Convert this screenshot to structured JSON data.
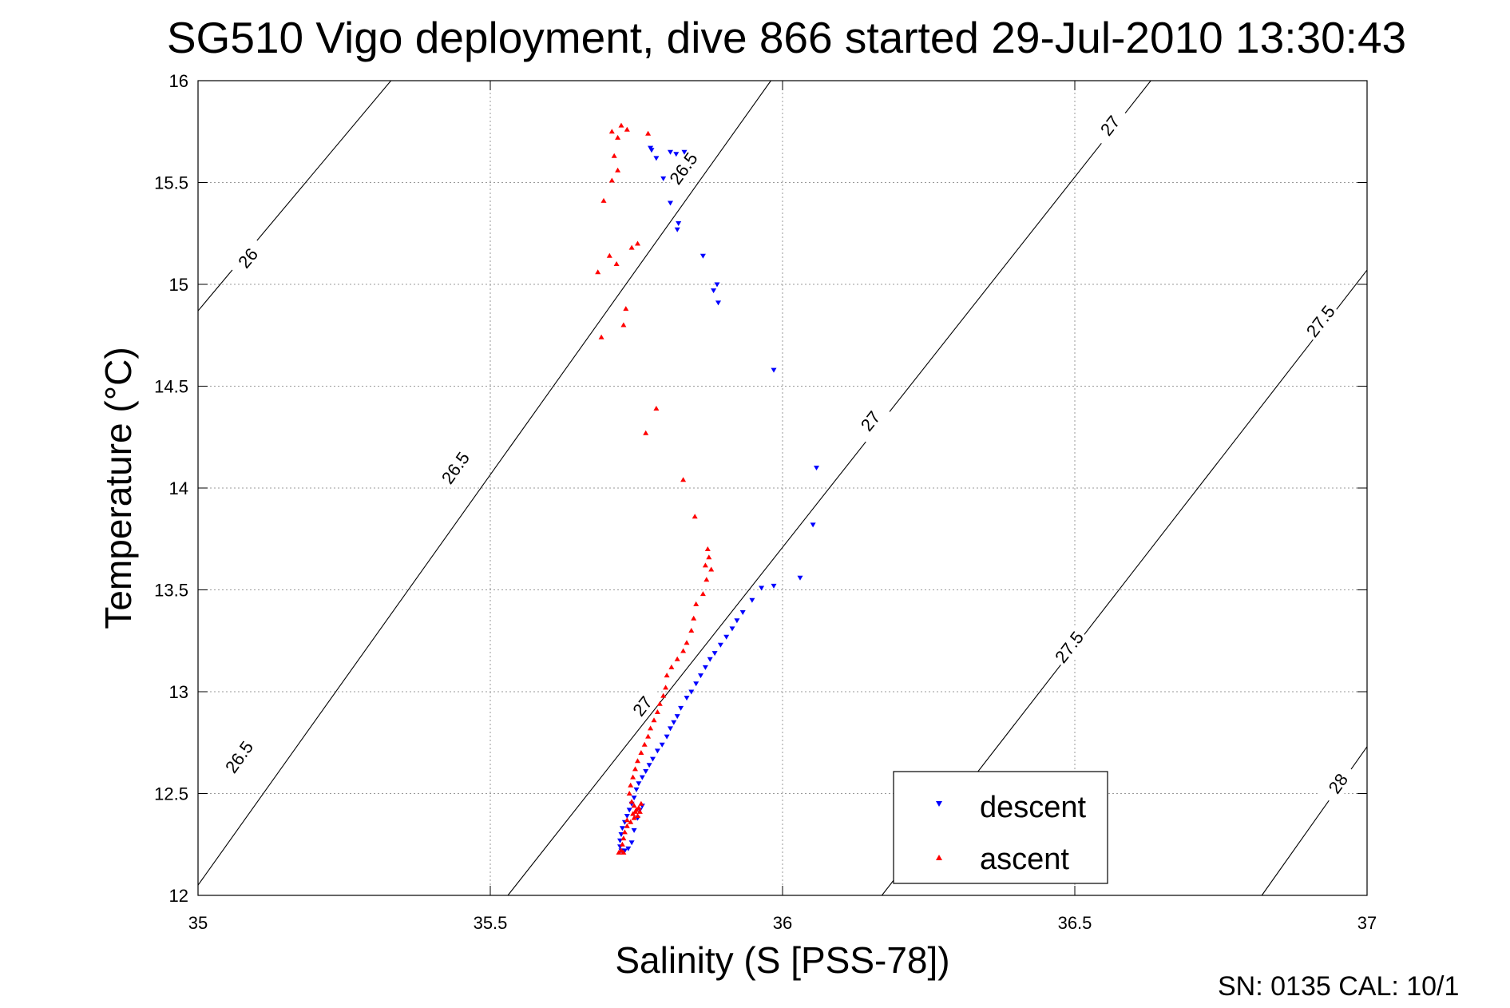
{
  "chart_data": {
    "type": "scatter",
    "title": "SG510 Vigo deployment, dive 866 started 29-Jul-2010 13:30:43",
    "xlabel": "Salinity (S [PSS-78])",
    "ylabel": "Temperature (°C)",
    "xlim": [
      35,
      37
    ],
    "ylim": [
      12,
      16
    ],
    "xticks": [
      "35",
      "35.5",
      "36",
      "36.5",
      "37"
    ],
    "yticks": [
      "12",
      "12.5",
      "13",
      "13.5",
      "14",
      "14.5",
      "15",
      "15.5",
      "16"
    ],
    "grid": true,
    "legend_position": "bottom-right",
    "footer": "SN: 0135  CAL: 10/1",
    "contours": [
      {
        "level": "26",
        "points": [
          [
            35.0,
            14.87
          ],
          [
            35.33,
            16.0
          ]
        ],
        "labels": [
          {
            "text": "26",
            "x": 35.085,
            "y": 15.13
          }
        ]
      },
      {
        "level": "26.5",
        "points": [
          [
            35.0,
            12.05
          ],
          [
            35.98,
            16.0
          ]
        ],
        "labels": [
          {
            "text": "26.5",
            "x": 35.44,
            "y": 14.1
          },
          {
            "text": "26.5",
            "x": 35.83,
            "y": 15.57
          },
          {
            "text": "26.5",
            "x": 35.07,
            "y": 12.68
          }
        ]
      },
      {
        "level": "27",
        "points": [
          [
            35.53,
            12.0
          ],
          [
            36.63,
            16.0
          ]
        ],
        "labels": [
          {
            "text": "27",
            "x": 35.76,
            "y": 12.93
          },
          {
            "text": "27",
            "x": 36.15,
            "y": 14.33
          },
          {
            "text": "27",
            "x": 36.56,
            "y": 15.78
          }
        ]
      },
      {
        "level": "27.5",
        "points": [
          [
            36.17,
            12.0
          ],
          [
            37.0,
            15.07
          ]
        ],
        "labels": [
          {
            "text": "27.5",
            "x": 36.49,
            "y": 13.22
          },
          {
            "text": "27.5",
            "x": 36.92,
            "y": 14.82
          }
        ]
      },
      {
        "level": "28",
        "points": [
          [
            36.82,
            12.0
          ],
          [
            37.0,
            12.73
          ]
        ],
        "labels": [
          {
            "text": "28",
            "x": 36.95,
            "y": 12.55
          }
        ]
      }
    ],
    "series": [
      {
        "name": "descent",
        "color": "#0000ff",
        "marker": "triangle-down",
        "points": [
          [
            35.774,
            15.67
          ],
          [
            35.776,
            15.66
          ],
          [
            35.784,
            15.62
          ],
          [
            35.796,
            15.52
          ],
          [
            35.808,
            15.65
          ],
          [
            35.818,
            15.64
          ],
          [
            35.832,
            15.65
          ],
          [
            35.808,
            15.4
          ],
          [
            35.82,
            15.27
          ],
          [
            35.822,
            15.3
          ],
          [
            35.864,
            15.14
          ],
          [
            35.882,
            14.97
          ],
          [
            35.888,
            15.0
          ],
          [
            35.89,
            14.91
          ],
          [
            35.985,
            14.58
          ],
          [
            36.058,
            14.1
          ],
          [
            36.052,
            13.82
          ],
          [
            36.03,
            13.56
          ],
          [
            35.985,
            13.52
          ],
          [
            35.964,
            13.51
          ],
          [
            35.948,
            13.45
          ],
          [
            35.932,
            13.39
          ],
          [
            35.922,
            13.35
          ],
          [
            35.914,
            13.31
          ],
          [
            35.904,
            13.27
          ],
          [
            35.894,
            13.23
          ],
          [
            35.884,
            13.19
          ],
          [
            35.876,
            13.16
          ],
          [
            35.868,
            13.12
          ],
          [
            35.86,
            13.08
          ],
          [
            35.852,
            13.04
          ],
          [
            35.844,
            13.0
          ],
          [
            35.836,
            12.97
          ],
          [
            35.826,
            12.92
          ],
          [
            35.82,
            12.88
          ],
          [
            35.814,
            12.85
          ],
          [
            35.808,
            12.82
          ],
          [
            35.802,
            12.78
          ],
          [
            35.794,
            12.74
          ],
          [
            35.786,
            12.71
          ],
          [
            35.778,
            12.67
          ],
          [
            35.772,
            12.64
          ],
          [
            35.766,
            12.61
          ],
          [
            35.76,
            12.58
          ],
          [
            35.754,
            12.55
          ],
          [
            35.75,
            12.52
          ],
          [
            35.746,
            12.48
          ],
          [
            35.742,
            12.45
          ],
          [
            35.738,
            12.42
          ],
          [
            35.734,
            12.39
          ],
          [
            35.73,
            12.36
          ],
          [
            35.726,
            12.33
          ],
          [
            35.724,
            12.3
          ],
          [
            35.722,
            12.27
          ],
          [
            35.722,
            12.24
          ],
          [
            35.724,
            12.22
          ],
          [
            35.73,
            12.22
          ],
          [
            35.736,
            12.23
          ],
          [
            35.742,
            12.26
          ],
          [
            35.746,
            12.32
          ],
          [
            35.752,
            12.38
          ],
          [
            35.756,
            12.42
          ],
          [
            35.76,
            12.44
          ]
        ]
      },
      {
        "name": "ascent",
        "color": "#ff0000",
        "marker": "triangle-up",
        "points": [
          [
            35.724,
            15.78
          ],
          [
            35.708,
            15.75
          ],
          [
            35.734,
            15.76
          ],
          [
            35.77,
            15.74
          ],
          [
            35.718,
            15.72
          ],
          [
            35.712,
            15.63
          ],
          [
            35.718,
            15.56
          ],
          [
            35.708,
            15.51
          ],
          [
            35.694,
            15.41
          ],
          [
            35.752,
            15.2
          ],
          [
            35.742,
            15.18
          ],
          [
            35.704,
            15.14
          ],
          [
            35.716,
            15.1
          ],
          [
            35.684,
            15.06
          ],
          [
            35.732,
            14.88
          ],
          [
            35.728,
            14.8
          ],
          [
            35.69,
            14.74
          ],
          [
            35.784,
            14.39
          ],
          [
            35.766,
            14.27
          ],
          [
            35.83,
            14.04
          ],
          [
            35.85,
            13.86
          ],
          [
            35.872,
            13.7
          ],
          [
            35.874,
            13.66
          ],
          [
            35.868,
            13.62
          ],
          [
            35.878,
            13.6
          ],
          [
            35.87,
            13.55
          ],
          [
            35.864,
            13.48
          ],
          [
            35.852,
            13.43
          ],
          [
            35.848,
            13.36
          ],
          [
            35.844,
            13.3
          ],
          [
            35.836,
            13.24
          ],
          [
            35.83,
            13.2
          ],
          [
            35.82,
            13.16
          ],
          [
            35.81,
            13.12
          ],
          [
            35.802,
            13.08
          ],
          [
            35.8,
            13.02
          ],
          [
            35.796,
            12.98
          ],
          [
            35.79,
            12.94
          ],
          [
            35.786,
            12.9
          ],
          [
            35.78,
            12.86
          ],
          [
            35.774,
            12.82
          ],
          [
            35.77,
            12.78
          ],
          [
            35.764,
            12.74
          ],
          [
            35.758,
            12.7
          ],
          [
            35.752,
            12.66
          ],
          [
            35.748,
            12.62
          ],
          [
            35.744,
            12.58
          ],
          [
            35.74,
            12.54
          ],
          [
            35.738,
            12.5
          ],
          [
            35.742,
            12.46
          ],
          [
            35.746,
            12.44
          ],
          [
            35.75,
            12.42
          ],
          [
            35.754,
            12.43
          ],
          [
            35.758,
            12.45
          ],
          [
            35.756,
            12.41
          ],
          [
            35.752,
            12.39
          ],
          [
            35.746,
            12.38
          ],
          [
            35.74,
            12.36
          ],
          [
            35.734,
            12.34
          ],
          [
            35.73,
            12.31
          ],
          [
            35.728,
            12.28
          ],
          [
            35.726,
            12.25
          ],
          [
            35.724,
            12.22
          ],
          [
            35.72,
            12.21
          ],
          [
            35.728,
            12.21
          ],
          [
            35.734,
            12.37
          ],
          [
            35.744,
            12.4
          ],
          [
            35.748,
            12.41
          ]
        ]
      }
    ]
  }
}
